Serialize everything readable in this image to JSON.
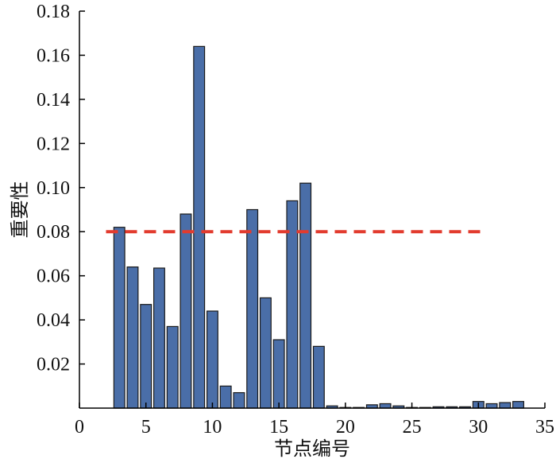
{
  "chart_data": {
    "type": "bar",
    "xlabel": "节点编号",
    "ylabel": "重要性",
    "xlim": [
      0,
      35
    ],
    "ylim": [
      0,
      0.18
    ],
    "x_ticks": [
      "0",
      "5",
      "10",
      "15",
      "20",
      "25",
      "30",
      "35"
    ],
    "y_ticks": [
      "0.02",
      "0.04",
      "0.06",
      "0.08",
      "0.10",
      "0.12",
      "0.14",
      "0.16",
      "0.18"
    ],
    "grid": false,
    "bar_color": "#4a6ea8",
    "bar_edge_color": "#1a1a1a",
    "categories": [
      3,
      4,
      5,
      6,
      7,
      8,
      9,
      10,
      11,
      12,
      13,
      14,
      15,
      16,
      17,
      18,
      19,
      20,
      21,
      22,
      23,
      24,
      25,
      26,
      27,
      28,
      29,
      30,
      31,
      32,
      33
    ],
    "values": [
      0.082,
      0.064,
      0.047,
      0.0635,
      0.037,
      0.088,
      0.164,
      0.044,
      0.01,
      0.007,
      0.09,
      0.05,
      0.031,
      0.094,
      0.102,
      0.028,
      0.001,
      0.0003,
      0.0003,
      0.0015,
      0.002,
      0.001,
      0.0003,
      0.0003,
      0.0006,
      0.0006,
      0.0006,
      0.003,
      0.002,
      0.0025,
      0.003
    ],
    "threshold": {
      "y": 0.08,
      "x_start": 2,
      "x_end": 30.5,
      "color": "#e23b2e",
      "style": "dashed"
    }
  }
}
